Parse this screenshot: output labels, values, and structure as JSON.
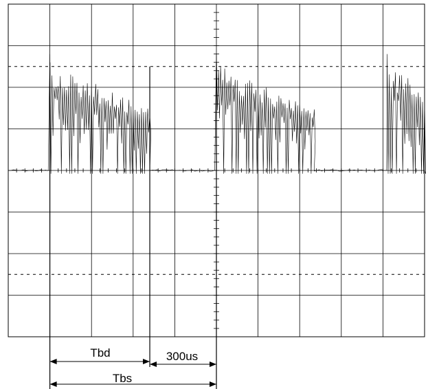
{
  "chart_data": {
    "type": "line",
    "title": "",
    "xlabel": "",
    "ylabel": "",
    "grid": true,
    "grid_divisions": {
      "x": 10,
      "y": 8
    },
    "xlim": [
      0,
      10
    ],
    "ylim": [
      -4,
      4
    ],
    "reference_lines_y": [
      2.5,
      -2.5
    ],
    "series": [
      {
        "kind": "pulse_burst",
        "bursts": [
          {
            "start": 1.0,
            "end": 3.4,
            "peak_start": 2.55,
            "peak_end": 1.55
          },
          {
            "start": 5.0,
            "end": 7.35,
            "peak_start": 2.55,
            "peak_end": 1.55
          },
          {
            "start": 9.1,
            "end": 10.0,
            "peak_start": 2.55,
            "peak_end": 2.0
          }
        ],
        "baseline": 0
      }
    ],
    "markers_x": [
      1.0,
      3.4,
      5.0
    ],
    "annotations": [
      {
        "text": "Tbd",
        "from": 1.0,
        "to": 3.4
      },
      {
        "text": "300us",
        "from": 3.4,
        "to": 5.0
      },
      {
        "text": "Tbs",
        "from": 1.0,
        "to": 5.0
      }
    ]
  },
  "labels": {
    "tbd": "Tbd",
    "gap": "300us",
    "tbs": "Tbs"
  }
}
